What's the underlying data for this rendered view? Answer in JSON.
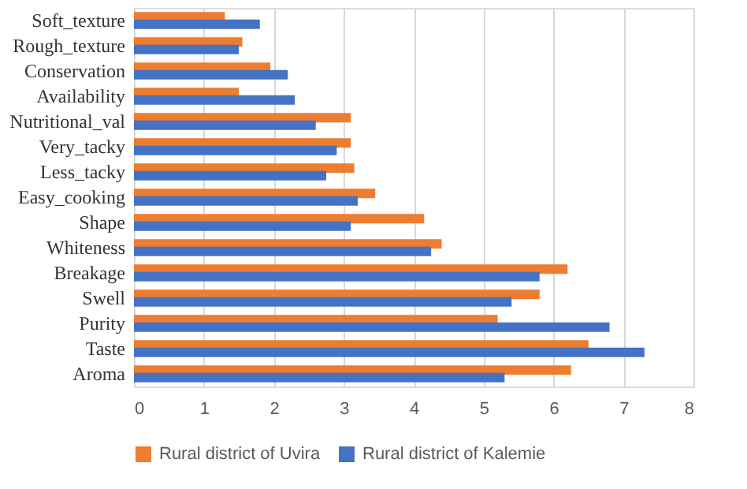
{
  "chart_data": {
    "type": "bar",
    "orientation": "horizontal",
    "categories": [
      "Soft_texture",
      "Rough_texture",
      "Conservation",
      "Availability",
      "Nutritional_val",
      "Very_tacky",
      "Less_tacky",
      "Easy_cooking",
      "Shape",
      "Whiteness",
      "Breakage",
      "Swell",
      "Purity",
      "Taste",
      "Aroma"
    ],
    "series": [
      {
        "name": "Rural district of Uvira",
        "color": "#ed7d31",
        "values": [
          1.3,
          1.55,
          1.95,
          1.5,
          3.1,
          3.1,
          3.15,
          3.45,
          4.15,
          4.4,
          6.2,
          5.8,
          5.2,
          6.5,
          6.25
        ]
      },
      {
        "name": "Rural district of Kalemie",
        "color": "#4472c4",
        "values": [
          1.8,
          1.5,
          2.2,
          2.3,
          2.6,
          2.9,
          2.75,
          3.2,
          3.1,
          4.25,
          5.8,
          5.4,
          6.8,
          7.3,
          5.3
        ]
      }
    ],
    "xlim": [
      0,
      8
    ],
    "xticks": [
      0,
      1,
      2,
      3,
      4,
      5,
      6,
      7,
      8
    ],
    "grid": "x",
    "legend": "bottom"
  }
}
